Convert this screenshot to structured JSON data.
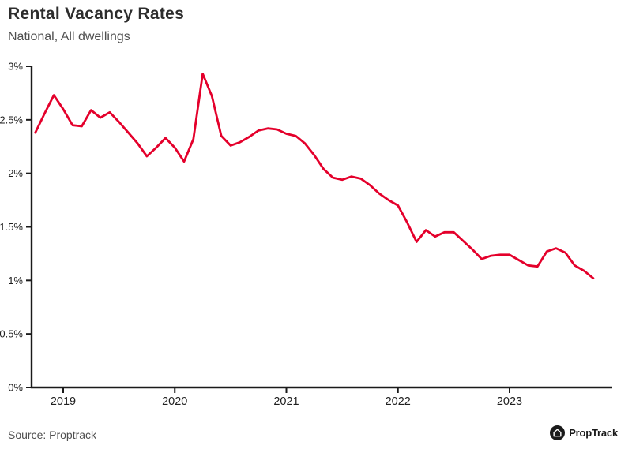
{
  "header": {
    "title": "Rental Vacancy Rates",
    "subtitle": "National, All dwellings"
  },
  "footer": {
    "source": "Source: Proptrack",
    "logo_text": "PropTrack",
    "logo_icon": "house-icon"
  },
  "colors": {
    "line": "#e4002b",
    "axis": "#1a1a1a",
    "tick_label": "#1f1f1f",
    "title": "#2d2d2d",
    "subtitle": "#4f4f4f",
    "source": "#4f4f4f",
    "logo_bg": "#1a1a1a",
    "logo_glyph": "#ffffff"
  },
  "chart_data": {
    "type": "line",
    "title": "Rental Vacancy Rates",
    "subtitle": "National, All dwellings",
    "unit": "%",
    "grid": false,
    "legend": "none",
    "ylim": [
      0,
      3
    ],
    "y_tick_step": 0.5,
    "y_tick_labels": [
      "0%",
      "0.5%",
      "1%",
      "1.5%",
      "2%",
      "2.5%",
      "3%"
    ],
    "x_tick_labels": [
      "2019",
      "2020",
      "2021",
      "2022",
      "2023"
    ],
    "x_tick_month_indices": [
      3,
      15,
      27,
      39,
      51
    ],
    "series": [
      {
        "name": "National rental vacancy rate, all dwellings",
        "frequency": "monthly",
        "start": "2018-10",
        "end": "2023-10",
        "values": [
          2.38,
          2.56,
          2.73,
          2.6,
          2.45,
          2.44,
          2.59,
          2.52,
          2.57,
          2.48,
          2.38,
          2.28,
          2.16,
          2.24,
          2.33,
          2.24,
          2.11,
          2.32,
          2.93,
          2.72,
          2.35,
          2.26,
          2.29,
          2.34,
          2.4,
          2.42,
          2.41,
          2.37,
          2.35,
          2.28,
          2.17,
          2.04,
          1.96,
          1.94,
          1.97,
          1.95,
          1.89,
          1.81,
          1.75,
          1.7,
          1.54,
          1.36,
          1.47,
          1.41,
          1.45,
          1.45,
          1.37,
          1.29,
          1.2,
          1.23,
          1.24,
          1.24,
          1.19,
          1.14,
          1.13,
          1.27,
          1.3,
          1.26,
          1.14,
          1.09,
          1.02
        ]
      }
    ]
  }
}
